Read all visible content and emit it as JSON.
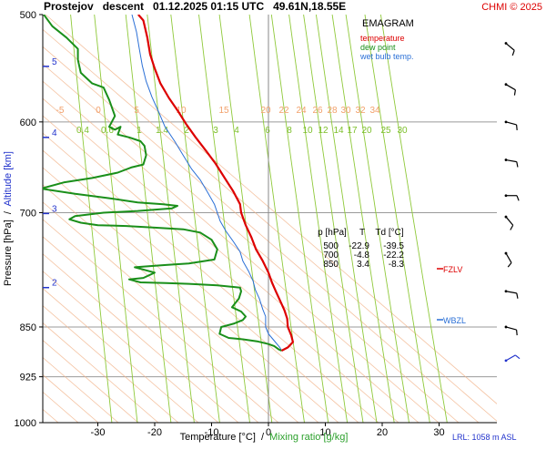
{
  "header": {
    "title": "Prostejov   descent   01.12.2025 01:15 UTC   49.61N,18.55E",
    "copyright": "CHMI © 2025"
  },
  "legend": {
    "title": "EMAGRAM",
    "items": [
      {
        "label": "temperature",
        "color": "#dd0000"
      },
      {
        "label": "dew point",
        "color": "#1a8f1a"
      },
      {
        "label": "wet bulb temp.",
        "color": "#2a6fd6"
      }
    ]
  },
  "axes": {
    "y_label_part1": "Pressure [hPa]  /  ",
    "y_label_part2": "Altitude [km]",
    "x_label_part1": "Temperature [°C]  /  ",
    "x_label_part2": "Mixing ratio [g/kg]"
  },
  "table": {
    "headers": [
      "p [hPa]",
      "T",
      "Td [°C]"
    ],
    "rows": [
      [
        "500",
        "-22.9",
        "-39.5"
      ],
      [
        "700",
        "-4.8",
        "-22.2"
      ],
      [
        "850",
        "3.4",
        "-8.3"
      ]
    ]
  },
  "markers": {
    "fzlv": "FZLV",
    "wbzl": "WBZL"
  },
  "footer": {
    "lrl": "LRL: 1058 m ASL"
  },
  "chart_data": {
    "type": "line",
    "subtype": "emagram",
    "title": "Prostejov descent 01.12.2025 01:15 UTC 49.61N,18.55E",
    "xlabel": "Temperature [°C] / Mixing ratio [g/kg]",
    "ylabel": "Pressure [hPa] / Altitude [km]",
    "xlim": [
      -40,
      40
    ],
    "ylim": [
      1000,
      500
    ],
    "x_ticks": [
      -30,
      -20,
      -10,
      0,
      10,
      20,
      30
    ],
    "y_ticks": [
      500,
      600,
      700,
      850,
      925,
      1000
    ],
    "pressure_gridlines": [
      600,
      700,
      850,
      925
    ],
    "altitude_ticks": [
      {
        "km": "5",
        "p": 546
      },
      {
        "km": "4",
        "p": 616
      },
      {
        "km": "3",
        "p": 701
      },
      {
        "km": "2",
        "p": 795
      }
    ],
    "mixing_ratio_labels": [
      "0.4",
      "0.6",
      "1",
      "1.4",
      "2",
      "3",
      "4",
      "6",
      "8",
      "10",
      "12",
      "14",
      "17",
      "20",
      "25",
      "30"
    ],
    "mixing_ratio_values": [
      0.4,
      0.6,
      1,
      1.4,
      2,
      3,
      4,
      6,
      8,
      10,
      12,
      14,
      17,
      20,
      25,
      30
    ],
    "theta_e_labels": [
      "-5",
      "0",
      "5",
      "10",
      "15",
      "20",
      "22",
      "24",
      "26",
      "28",
      "30",
      "32",
      "34"
    ],
    "grid": true,
    "series": [
      {
        "name": "temperature",
        "color": "#dd0000",
        "points": [
          [
            -22.9,
            500
          ],
          [
            -22.0,
            505
          ],
          [
            -21.3,
            520
          ],
          [
            -20.8,
            535
          ],
          [
            -20.0,
            548
          ],
          [
            -19.0,
            562
          ],
          [
            -17.5,
            576
          ],
          [
            -15.8,
            590
          ],
          [
            -14.5,
            602
          ],
          [
            -12.8,
            616
          ],
          [
            -11.0,
            630
          ],
          [
            -9.3,
            644
          ],
          [
            -7.7,
            660
          ],
          [
            -6.2,
            675
          ],
          [
            -5.0,
            690
          ],
          [
            -4.8,
            700
          ],
          [
            -4.0,
            715
          ],
          [
            -3.0,
            730
          ],
          [
            -2.2,
            745
          ],
          [
            -1.0,
            760
          ],
          [
            0.0,
            775
          ],
          [
            0.6,
            788
          ],
          [
            1.3,
            800
          ],
          [
            2.0,
            812
          ],
          [
            2.8,
            826
          ],
          [
            3.3,
            838
          ],
          [
            3.4,
            850
          ],
          [
            4.0,
            862
          ],
          [
            4.3,
            872
          ],
          [
            3.4,
            880
          ],
          [
            2.3,
            885
          ]
        ]
      },
      {
        "name": "dew point",
        "color": "#1a8f1a",
        "points": [
          [
            -39.5,
            500
          ],
          [
            -38.0,
            510
          ],
          [
            -35.5,
            520
          ],
          [
            -33.5,
            530
          ],
          [
            -33.5,
            540
          ],
          [
            -33.0,
            552
          ],
          [
            -31.0,
            562
          ],
          [
            -29.0,
            566
          ],
          [
            -28.0,
            578
          ],
          [
            -27.0,
            594
          ],
          [
            -28.0,
            605
          ],
          [
            -27.0,
            608
          ],
          [
            -26.0,
            605
          ],
          [
            -26.5,
            613
          ],
          [
            -24.5,
            616
          ],
          [
            -22.5,
            620
          ],
          [
            -21.8,
            625
          ],
          [
            -21.5,
            635
          ],
          [
            -22.0,
            645
          ],
          [
            -24.0,
            648
          ],
          [
            -26.5,
            654
          ],
          [
            -31.0,
            660
          ],
          [
            -36.0,
            665
          ],
          [
            -40.0,
            672
          ],
          [
            -34.0,
            678
          ],
          [
            -28.0,
            683
          ],
          [
            -23.0,
            688
          ],
          [
            -18.5,
            690
          ],
          [
            -16.0,
            692
          ],
          [
            -17.0,
            695
          ],
          [
            -23.0,
            698
          ],
          [
            -29.0,
            700
          ],
          [
            -34.0,
            704
          ],
          [
            -35.0,
            708
          ],
          [
            -33.0,
            712
          ],
          [
            -30.0,
            715
          ],
          [
            -25.0,
            716
          ],
          [
            -20.0,
            718
          ],
          [
            -15.0,
            720
          ],
          [
            -12.0,
            724
          ],
          [
            -10.0,
            733
          ],
          [
            -9.0,
            745
          ],
          [
            -9.5,
            758
          ],
          [
            -14.0,
            763
          ],
          [
            -18.0,
            765
          ],
          [
            -23.5,
            768
          ],
          [
            -20.0,
            775
          ],
          [
            -22.0,
            782
          ],
          [
            -24.5,
            784
          ],
          [
            -22.5,
            788
          ],
          [
            -18.0,
            789
          ],
          [
            -14.0,
            790
          ],
          [
            -9.0,
            792
          ],
          [
            -5.0,
            795
          ],
          [
            -4.8,
            800
          ],
          [
            -5.2,
            810
          ],
          [
            -6.4,
            822
          ],
          [
            -4.8,
            828
          ],
          [
            -4.0,
            835
          ],
          [
            -4.5,
            840
          ],
          [
            -6.0,
            845
          ],
          [
            -8.3,
            850
          ],
          [
            -8.6,
            860
          ],
          [
            -7.0,
            866
          ],
          [
            -4.5,
            868
          ],
          [
            -2.0,
            871
          ],
          [
            0.0,
            875
          ],
          [
            1.0,
            878
          ],
          [
            1.8,
            883
          ],
          [
            2.3,
            885
          ]
        ]
      },
      {
        "name": "wet bulb temp.",
        "color": "#2a6fd6",
        "points": [
          [
            -24.0,
            500
          ],
          [
            -23.2,
            515
          ],
          [
            -22.7,
            530
          ],
          [
            -22.2,
            545
          ],
          [
            -21.5,
            560
          ],
          [
            -20.5,
            575
          ],
          [
            -19.3,
            590
          ],
          [
            -18.2,
            605
          ],
          [
            -16.5,
            620
          ],
          [
            -15.0,
            635
          ],
          [
            -13.5,
            650
          ],
          [
            -12.0,
            662
          ],
          [
            -10.8,
            675
          ],
          [
            -9.5,
            690
          ],
          [
            -9.0,
            700
          ],
          [
            -8.5,
            710
          ],
          [
            -7.5,
            722
          ],
          [
            -6.2,
            735
          ],
          [
            -5.0,
            748
          ],
          [
            -4.5,
            760
          ],
          [
            -3.5,
            773
          ],
          [
            -2.7,
            786
          ],
          [
            -2.3,
            798
          ],
          [
            -1.6,
            810
          ],
          [
            -1.0,
            825
          ],
          [
            -0.5,
            835
          ],
          [
            -0.5,
            850
          ],
          [
            0.0,
            860
          ],
          [
            1.0,
            870
          ],
          [
            2.0,
            880
          ],
          [
            2.3,
            885
          ]
        ]
      }
    ],
    "wind_barbs": [
      {
        "p": 525,
        "dir_deg": 310
      },
      {
        "p": 563,
        "dir_deg": 300
      },
      {
        "p": 600,
        "dir_deg": 285
      },
      {
        "p": 640,
        "dir_deg": 280
      },
      {
        "p": 680,
        "dir_deg": 270
      },
      {
        "p": 705,
        "dir_deg": 320
      },
      {
        "p": 750,
        "dir_deg": 330
      },
      {
        "p": 800,
        "dir_deg": 280
      },
      {
        "p": 850,
        "dir_deg": 285
      },
      {
        "p": 900,
        "dir_deg": 240
      }
    ]
  }
}
